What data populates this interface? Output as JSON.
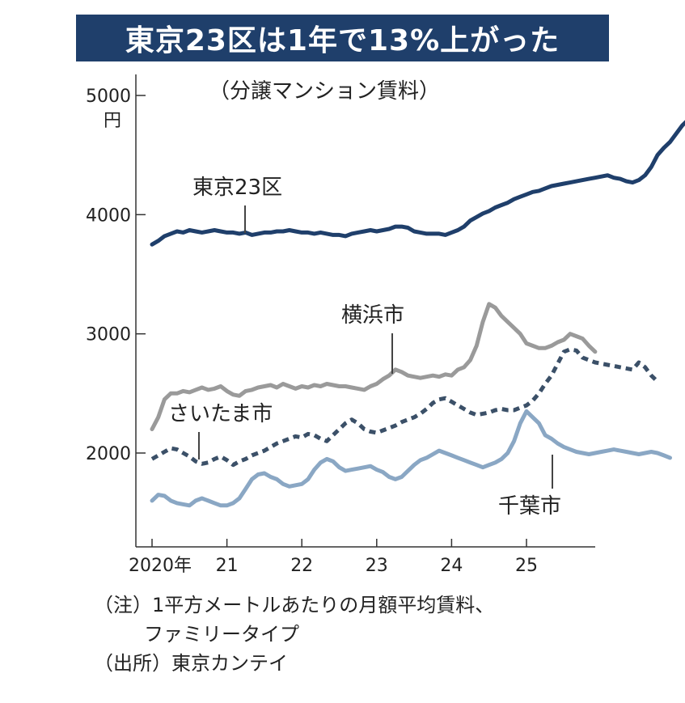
{
  "title": "東京23区は1年で13%上がった",
  "subtitle": "（分譲マンション賃料）",
  "notes": {
    "note_line1": "（注）1平方メートルあたりの月額平均賃料、",
    "note_line2": "ファミリータイプ",
    "source": "（出所）東京カンテイ"
  },
  "colors": {
    "title_bg": "#1f3f6b",
    "tokyo": "#1f3f6b",
    "yokohama": "#9a9a9a",
    "saitama": "#3b5068",
    "chiba": "#8aa7c4"
  },
  "chart_data": {
    "type": "line",
    "y_unit": "円",
    "ylim": [
      1400,
      5200
    ],
    "yticks": [
      2000,
      3000,
      4000,
      5000
    ],
    "x_tick_labels": [
      "2020年",
      "21",
      "22",
      "23",
      "24",
      "25"
    ],
    "x_range": [
      "2020-01",
      "2025-08"
    ],
    "grid": false,
    "series": [
      {
        "name": "東京23区",
        "style": "solid",
        "values": [
          3750,
          3780,
          3820,
          3840,
          3860,
          3850,
          3870,
          3860,
          3850,
          3860,
          3870,
          3860,
          3850,
          3850,
          3840,
          3850,
          3830,
          3840,
          3850,
          3850,
          3860,
          3860,
          3870,
          3860,
          3850,
          3850,
          3840,
          3850,
          3840,
          3830,
          3830,
          3820,
          3840,
          3850,
          3860,
          3870,
          3860,
          3870,
          3880,
          3900,
          3900,
          3890,
          3860,
          3850,
          3840,
          3840,
          3840,
          3830,
          3850,
          3870,
          3900,
          3950,
          3980,
          4010,
          4030,
          4060,
          4080,
          4100,
          4130,
          4150,
          4170,
          4190,
          4200,
          4220,
          4240,
          4250,
          4260,
          4270,
          4280,
          4290,
          4300,
          4310,
          4320,
          4330,
          4310,
          4300,
          4280,
          4270,
          4290,
          4330,
          4400,
          4500,
          4560,
          4610,
          4680,
          4750,
          4800,
          4840
        ]
      },
      {
        "name": "横浜市",
        "style": "solid",
        "values": [
          2200,
          2300,
          2450,
          2500,
          2500,
          2520,
          2510,
          2530,
          2550,
          2530,
          2540,
          2560,
          2520,
          2490,
          2480,
          2520,
          2530,
          2550,
          2560,
          2570,
          2550,
          2580,
          2560,
          2540,
          2560,
          2550,
          2570,
          2560,
          2580,
          2570,
          2560,
          2560,
          2550,
          2540,
          2530,
          2560,
          2580,
          2620,
          2650,
          2700,
          2680,
          2650,
          2640,
          2630,
          2640,
          2650,
          2640,
          2660,
          2650,
          2700,
          2720,
          2780,
          2900,
          3100,
          3250,
          3220,
          3150,
          3100,
          3050,
          3000,
          2920,
          2900,
          2880,
          2880,
          2900,
          2930,
          2950,
          3000,
          2980,
          2960,
          2900,
          2850
        ]
      },
      {
        "name": "さいたま市",
        "style": "dashed",
        "values": [
          1950,
          1980,
          2010,
          2040,
          2030,
          2000,
          1970,
          1930,
          1910,
          1920,
          1950,
          1970,
          1940,
          1900,
          1930,
          1950,
          1980,
          2000,
          2020,
          2050,
          2080,
          2100,
          2120,
          2140,
          2130,
          2160,
          2150,
          2120,
          2100,
          2150,
          2200,
          2250,
          2280,
          2250,
          2200,
          2180,
          2170,
          2190,
          2210,
          2230,
          2260,
          2280,
          2300,
          2330,
          2370,
          2420,
          2450,
          2460,
          2430,
          2400,
          2370,
          2340,
          2320,
          2330,
          2340,
          2360,
          2370,
          2360,
          2360,
          2380,
          2400,
          2440,
          2500,
          2580,
          2650,
          2750,
          2850,
          2870,
          2860,
          2800,
          2780,
          2760,
          2750,
          2740,
          2730,
          2720,
          2710,
          2700,
          2760,
          2720,
          2650,
          2600
        ]
      },
      {
        "name": "千葉市",
        "style": "solid",
        "values": [
          1600,
          1650,
          1640,
          1600,
          1580,
          1570,
          1560,
          1600,
          1620,
          1600,
          1580,
          1560,
          1560,
          1580,
          1620,
          1700,
          1780,
          1820,
          1830,
          1800,
          1780,
          1740,
          1720,
          1730,
          1740,
          1780,
          1860,
          1920,
          1950,
          1930,
          1880,
          1850,
          1860,
          1870,
          1880,
          1890,
          1860,
          1840,
          1800,
          1780,
          1800,
          1850,
          1900,
          1940,
          1960,
          1990,
          2020,
          2000,
          1980,
          1960,
          1940,
          1920,
          1900,
          1880,
          1900,
          1920,
          1950,
          2000,
          2100,
          2250,
          2350,
          2300,
          2250,
          2150,
          2120,
          2080,
          2050,
          2030,
          2010,
          2000,
          1990,
          2000,
          2010,
          2020,
          2030,
          2020,
          2010,
          2000,
          1990,
          2000,
          2010,
          2000,
          1980,
          1960
        ]
      }
    ],
    "annotations": [
      "東京23区",
      "横浜市",
      "さいたま市",
      "千葉市"
    ]
  }
}
